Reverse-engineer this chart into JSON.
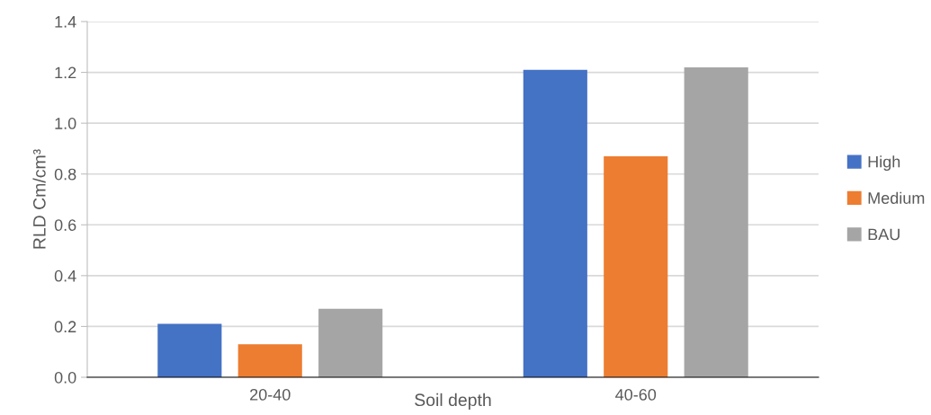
{
  "chart_data": {
    "type": "bar",
    "xlabel": "Soil depth",
    "ylabel": "RLD Cm/cm³",
    "categories": [
      "20-40",
      "40-60"
    ],
    "series": [
      {
        "name": "High",
        "color": "#4472c4",
        "values": [
          0.21,
          1.21
        ]
      },
      {
        "name": "Medium",
        "color": "#ed7d31",
        "values": [
          0.13,
          0.87
        ]
      },
      {
        "name": "BAU",
        "color": "#a5a5a5",
        "values": [
          0.27,
          1.22
        ]
      }
    ],
    "ylim": [
      0,
      1.4
    ],
    "yticks": [
      {
        "value": 0,
        "label": "0.0"
      },
      {
        "value": 0.2,
        "label": "0.2"
      },
      {
        "value": 0.4,
        "label": "0.4"
      },
      {
        "value": 0.6,
        "label": "0.6"
      },
      {
        "value": 0.8,
        "label": "0.8"
      },
      {
        "value": 1.0,
        "label": "1.0"
      },
      {
        "value": 1.2,
        "label": "1.2"
      },
      {
        "value": 1.4,
        "label": "1.4"
      }
    ],
    "grid": "y",
    "legend": "right"
  }
}
